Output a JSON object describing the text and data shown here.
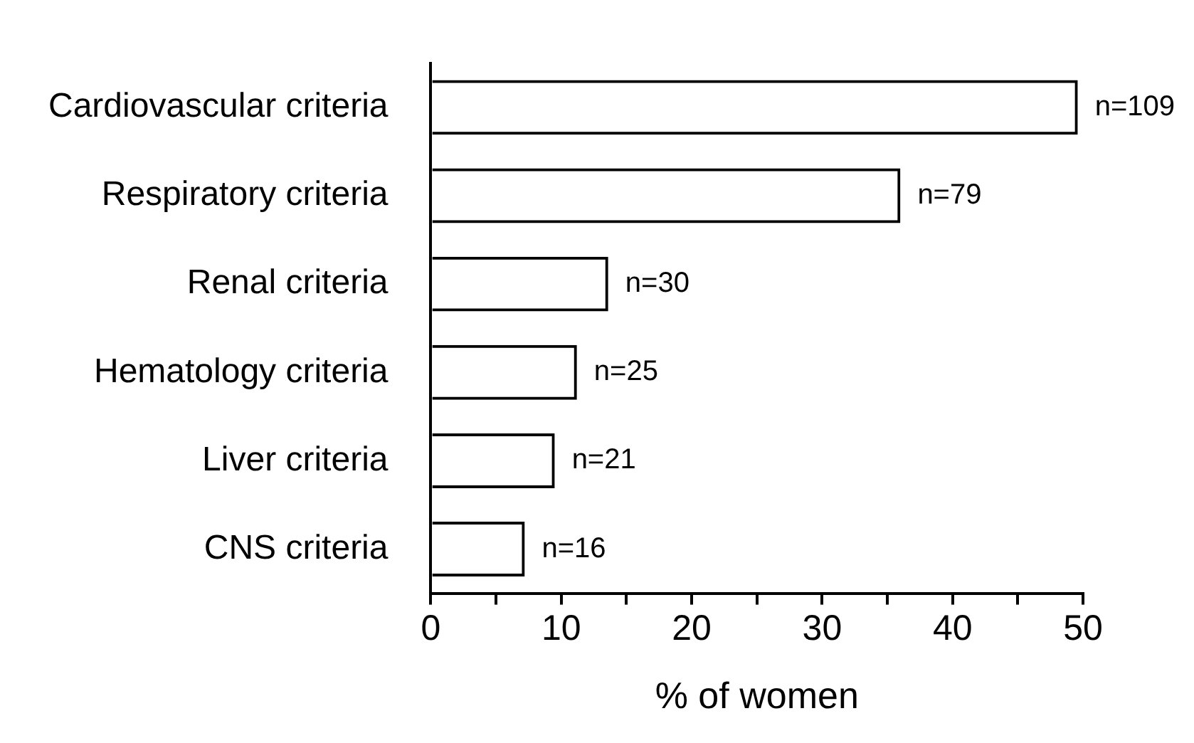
{
  "chart_data": {
    "type": "bar",
    "orientation": "horizontal",
    "xlabel": "% of women",
    "categories": [
      "Cardiovascular criteria",
      "Respiratory criteria",
      "Renal criteria",
      "Hematology criteria",
      "Liver criteria",
      "CNS criteria"
    ],
    "values": [
      49.6,
      36.0,
      13.6,
      11.2,
      9.5,
      7.2
    ],
    "annotations": [
      {
        "text": "n=109",
        "x": 49.6,
        "y": "Cardiovascular criteria"
      },
      {
        "text": "n=79",
        "x": 36.0,
        "y": "Respiratory criteria"
      },
      {
        "text": "n=30",
        "x": 13.6,
        "y": "Renal criteria"
      },
      {
        "text": "n=25",
        "x": 11.2,
        "y": "Hematology criteria"
      },
      {
        "text": "n=21",
        "x": 9.5,
        "y": "Liver criteria"
      },
      {
        "text": "n=16",
        "x": 7.2,
        "y": "CNS criteria"
      }
    ],
    "color": "#000000",
    "xlim": [
      0,
      50
    ],
    "xticks": [
      0,
      {
        "value": 5,
        "label": null
      },
      10,
      {
        "value": 15,
        "label": null
      },
      20,
      {
        "value": 25,
        "label": null
      },
      30,
      {
        "value": 35,
        "label": null
      },
      40,
      {
        "value": 45,
        "label": null
      },
      50
    ],
    "grid": false,
    "legend": false
  }
}
